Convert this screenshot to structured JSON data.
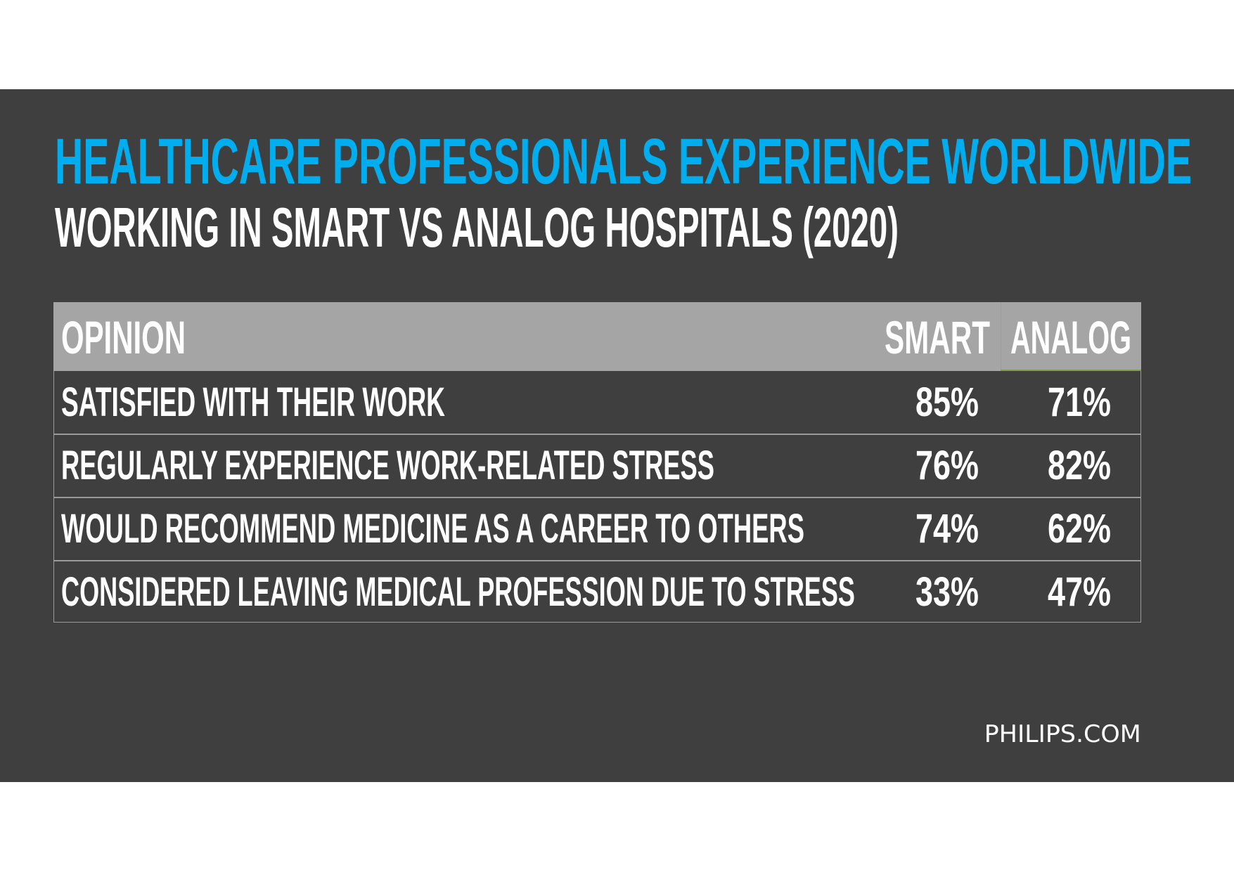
{
  "colors": {
    "background": "#3f3f3f",
    "title": "#00aeef",
    "text": "#ffffff",
    "header_bg": "#a5a5a5",
    "border": "#9a9a9a"
  },
  "title": "HEALTHCARE PROFESSIONALS EXPERIENCE WORLDWIDE",
  "subtitle": "WORKING IN SMART VS ANALOG HOSPITALS (2020)",
  "table": {
    "headers": [
      "OPINION",
      "SMART",
      "ANALOG"
    ],
    "rows": [
      {
        "opinion": "SATISFIED WITH THEIR WORK",
        "smart": "85%",
        "analog": "71%"
      },
      {
        "opinion": "REGULARLY EXPERIENCE WORK-RELATED STRESS",
        "smart": "76%",
        "analog": "82%"
      },
      {
        "opinion": "WOULD RECOMMEND MEDICINE AS A CAREER TO OTHERS",
        "smart": "74%",
        "analog": "62%"
      },
      {
        "opinion": "CONSIDERED LEAVING MEDICAL PROFESSION DUE TO STRESS",
        "smart": "33%",
        "analog": "47%"
      }
    ]
  },
  "source": "PHILIPS.COM"
}
